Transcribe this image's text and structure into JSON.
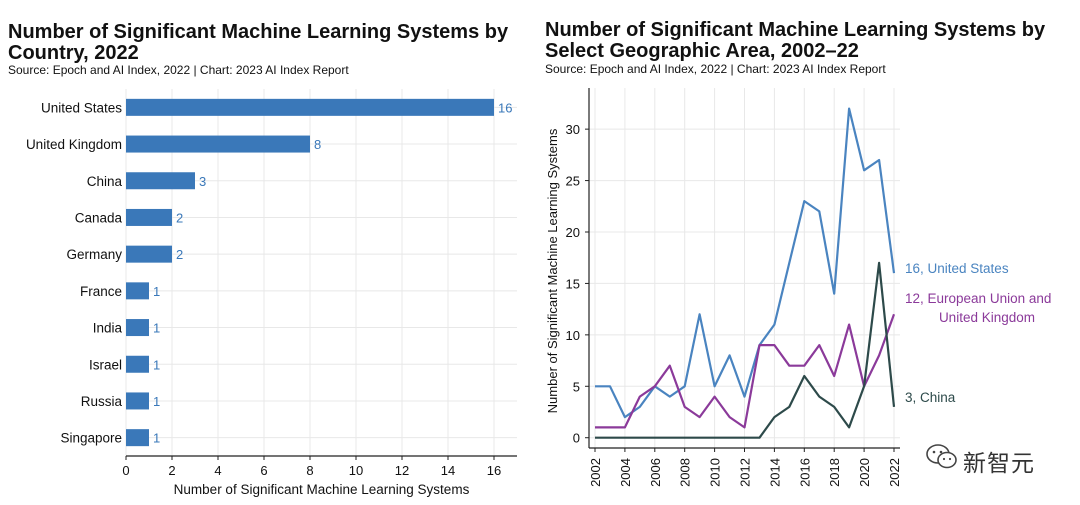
{
  "colors": {
    "bar": "#3a78b9",
    "us": "#4a84c0",
    "eu": "#8b3a9a",
    "china": "#2d4a4a",
    "grid": "#e8e8e8",
    "axis": "#222222"
  },
  "left": {
    "title_line1": "Number of Significant Machine Learning Systems by",
    "title_line2": "Country, 2022",
    "source": "Source: Epoch and AI Index, 2022 | Chart: 2023 AI Index Report"
  },
  "right": {
    "title_line1": "Number of Significant Machine Learning Systems by",
    "title_line2": "Select Geographic Area, 2002–22",
    "source": "Source: Epoch and AI Index, 2022 | Chart: 2023 AI Index Report"
  },
  "watermark": {
    "text": "新智元",
    "icon": "wechat-icon"
  },
  "chart_data": [
    {
      "type": "bar",
      "orientation": "horizontal",
      "title": "Number of Significant Machine Learning Systems by Country, 2022",
      "categories": [
        "United States",
        "United Kingdom",
        "China",
        "Canada",
        "Germany",
        "France",
        "India",
        "Israel",
        "Russia",
        "Singapore"
      ],
      "values": [
        16,
        8,
        3,
        2,
        2,
        1,
        1,
        1,
        1,
        1
      ],
      "data_labels": [
        "16",
        "8",
        "3",
        "2",
        "2",
        "1",
        "1",
        "1",
        "1",
        "1"
      ],
      "xlabel": "Number of Significant Machine Learning Systems",
      "ylabel": "",
      "xlim": [
        0,
        17
      ],
      "xticks": [
        0,
        2,
        4,
        6,
        8,
        10,
        12,
        14,
        16
      ],
      "grid": true
    },
    {
      "type": "line",
      "title": "Number of Significant Machine Learning Systems by Select Geographic Area, 2002–22",
      "x": [
        2002,
        2003,
        2004,
        2005,
        2006,
        2007,
        2008,
        2009,
        2010,
        2011,
        2012,
        2013,
        2014,
        2015,
        2016,
        2017,
        2018,
        2019,
        2020,
        2021,
        2022
      ],
      "xticks": [
        2002,
        2004,
        2006,
        2008,
        2010,
        2012,
        2014,
        2016,
        2018,
        2020,
        2022
      ],
      "ylabel": "Number of  Significant Machine Learning Systems",
      "xlabel": "",
      "ylim": [
        -1,
        34
      ],
      "yticks": [
        0,
        5,
        10,
        15,
        20,
        25,
        30
      ],
      "grid": true,
      "series": [
        {
          "name": "United States",
          "end_label": "16, United States",
          "values": [
            5,
            5,
            2,
            3,
            5,
            4,
            5,
            12,
            5,
            8,
            4,
            9,
            11,
            17,
            23,
            22,
            14,
            32,
            26,
            27,
            16
          ]
        },
        {
          "name": "European Union and United Kingdom",
          "end_label_line1": "12, European Union and",
          "end_label_line2": "United Kingdom",
          "values": [
            1,
            1,
            1,
            4,
            5,
            7,
            3,
            2,
            4,
            2,
            1,
            9,
            9,
            7,
            7,
            9,
            6,
            11,
            5,
            8,
            12
          ]
        },
        {
          "name": "China",
          "end_label": "3, China",
          "values": [
            0,
            0,
            0,
            0,
            0,
            0,
            0,
            0,
            0,
            0,
            0,
            0,
            2,
            3,
            6,
            4,
            3,
            1,
            5,
            17,
            3
          ]
        }
      ]
    }
  ]
}
